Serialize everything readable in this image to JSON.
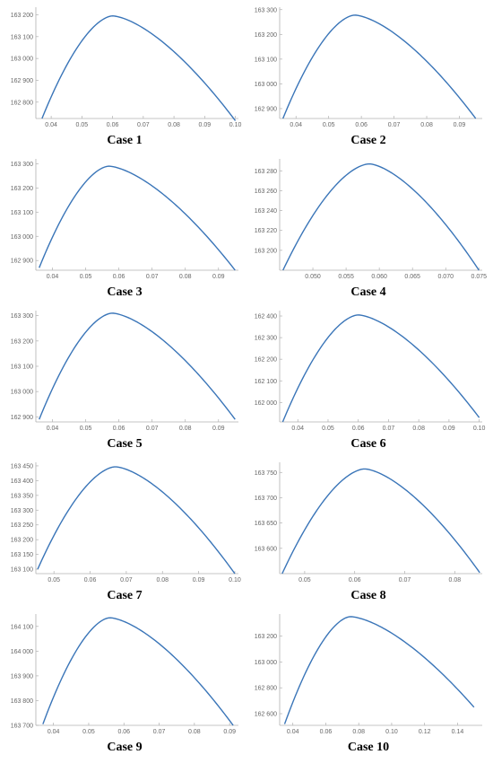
{
  "chart_data": [
    {
      "type": "line",
      "title": "Case 1",
      "x_ticks": [
        "0.04",
        "0.05",
        "0.06",
        "0.07",
        "0.08",
        "0.09",
        "0.10"
      ],
      "y_ticks": [
        "162 800",
        "162 900",
        "163 000",
        "163 100",
        "163 200"
      ],
      "xlim": [
        0.035,
        0.101
      ],
      "ylim": [
        162725,
        163235
      ],
      "series": [
        {
          "peak_x": 0.06,
          "peak_y": 163195,
          "x": [
            0.037,
            0.1
          ],
          "y": [
            162725,
            162715
          ]
        }
      ]
    },
    {
      "type": "line",
      "title": "Case 2",
      "x_ticks": [
        "0.04",
        "0.05",
        "0.06",
        "0.07",
        "0.08",
        "0.09"
      ],
      "y_ticks": [
        "162 900",
        "163 000",
        "163 100",
        "163 200",
        "163 300"
      ],
      "xlim": [
        0.035,
        0.097
      ],
      "ylim": [
        162860,
        163310
      ],
      "series": [
        {
          "peak_x": 0.058,
          "peak_y": 163278,
          "x": [
            0.036,
            0.095
          ],
          "y": [
            162860,
            162860
          ]
        }
      ]
    },
    {
      "type": "line",
      "title": "Case 3",
      "x_ticks": [
        "0.04",
        "0.05",
        "0.06",
        "0.07",
        "0.08",
        "0.09"
      ],
      "y_ticks": [
        "162 900",
        "163 000",
        "163 100",
        "163 200",
        "163 300"
      ],
      "xlim": [
        0.035,
        0.096
      ],
      "ylim": [
        162860,
        163320
      ],
      "series": [
        {
          "peak_x": 0.057,
          "peak_y": 163290,
          "x": [
            0.036,
            0.095
          ],
          "y": [
            162870,
            162860
          ]
        }
      ]
    },
    {
      "type": "line",
      "title": "Case 4",
      "x_ticks": [
        "0.050",
        "0.055",
        "0.060",
        "0.065",
        "0.070",
        "0.075"
      ],
      "y_ticks": [
        "163 200",
        "163 220",
        "163 240",
        "163 260",
        "163 280"
      ],
      "xlim": [
        0.045,
        0.0755
      ],
      "ylim": [
        163180,
        163292
      ],
      "series": [
        {
          "peak_x": 0.0585,
          "peak_y": 163287,
          "x": [
            0.0455,
            0.075
          ],
          "y": [
            163180,
            163180
          ]
        }
      ]
    },
    {
      "type": "line",
      "title": "Case 5",
      "x_ticks": [
        "0.04",
        "0.05",
        "0.06",
        "0.07",
        "0.08",
        "0.09"
      ],
      "y_ticks": [
        "162 900",
        "163 000",
        "163 100",
        "163 200",
        "163 300"
      ],
      "xlim": [
        0.035,
        0.096
      ],
      "ylim": [
        162880,
        163320
      ],
      "series": [
        {
          "peak_x": 0.058,
          "peak_y": 163310,
          "x": [
            0.036,
            0.095
          ],
          "y": [
            162890,
            162890
          ]
        }
      ]
    },
    {
      "type": "line",
      "title": "Case 6",
      "x_ticks": [
        "0.04",
        "0.05",
        "0.06",
        "0.07",
        "0.08",
        "0.09",
        "0.10"
      ],
      "y_ticks": [
        "162 000",
        "162 100",
        "162 200",
        "162 300",
        "162 400"
      ],
      "xlim": [
        0.034,
        0.101
      ],
      "ylim": [
        161910,
        162425
      ],
      "series": [
        {
          "peak_x": 0.06,
          "peak_y": 162405,
          "x": [
            0.035,
            0.1
          ],
          "y": [
            161910,
            161930
          ]
        }
      ]
    },
    {
      "type": "line",
      "title": "Case 7",
      "x_ticks": [
        "0.05",
        "0.06",
        "0.07",
        "0.08",
        "0.09",
        "0.10"
      ],
      "y_ticks": [
        "163 100",
        "163 150",
        "163 200",
        "163 250",
        "163 300",
        "163 350",
        "163 400",
        "163 450"
      ],
      "xlim": [
        0.045,
        0.101
      ],
      "ylim": [
        163085,
        163462
      ],
      "series": [
        {
          "peak_x": 0.067,
          "peak_y": 163447,
          "x": [
            0.0455,
            0.1
          ],
          "y": [
            163100,
            163085
          ]
        }
      ]
    },
    {
      "type": "line",
      "title": "Case 8",
      "x_ticks": [
        "0.05",
        "0.06",
        "0.07",
        "0.08"
      ],
      "y_ticks": [
        "163 600",
        "163 650",
        "163 700",
        "163 750"
      ],
      "xlim": [
        0.045,
        0.0855
      ],
      "ylim": [
        163550,
        163770
      ],
      "series": [
        {
          "peak_x": 0.062,
          "peak_y": 163757,
          "x": [
            0.0455,
            0.085
          ],
          "y": [
            163550,
            163552
          ]
        }
      ]
    },
    {
      "type": "line",
      "title": "Case 9",
      "x_ticks": [
        "0.04",
        "0.05",
        "0.06",
        "0.07",
        "0.08",
        "0.09"
      ],
      "y_ticks": [
        "163 700",
        "163 800",
        "163 900",
        "164 000",
        "164 100"
      ],
      "xlim": [
        0.035,
        0.0925
      ],
      "ylim": [
        163700,
        164150
      ],
      "series": [
        {
          "peak_x": 0.056,
          "peak_y": 164135,
          "x": [
            0.037,
            0.091
          ],
          "y": [
            163705,
            163700
          ]
        }
      ]
    },
    {
      "type": "line",
      "title": "Case 10",
      "x_ticks": [
        "0.04",
        "0.06",
        "0.08",
        "0.10",
        "0.12",
        "0.14"
      ],
      "y_ticks": [
        "162 600",
        "162 800",
        "163 000",
        "163 200"
      ],
      "xlim": [
        0.032,
        0.155
      ],
      "ylim": [
        162510,
        163370
      ],
      "series": [
        {
          "peak_x": 0.075,
          "peak_y": 163350,
          "x": [
            0.035,
            0.15
          ],
          "y": [
            162520,
            162650
          ]
        }
      ]
    }
  ]
}
